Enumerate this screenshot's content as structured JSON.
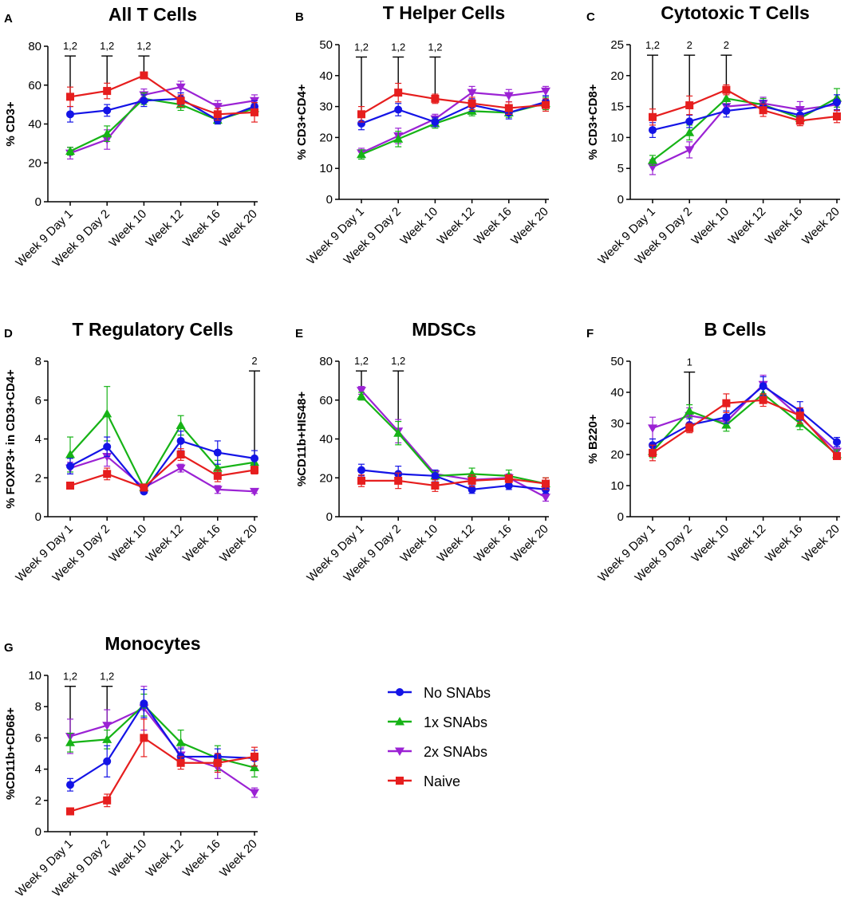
{
  "legend": [
    {
      "name": "No SNAbs",
      "color": "#1414e6",
      "marker": "circle"
    },
    {
      "name": "1x SNAbs",
      "color": "#16b316",
      "marker": "triangle-up"
    },
    {
      "name": "2x SNAbs",
      "color": "#9b22d4",
      "marker": "triangle-down"
    },
    {
      "name": "Naive",
      "color": "#e61e1e",
      "marker": "square"
    }
  ],
  "chart_data": [
    {
      "type": "line",
      "panel": "A",
      "title": "All T Cells",
      "ylabel": "% CD3+",
      "categories": [
        "Week 9 Day 1",
        "Week 9 Day 2",
        "Week 10",
        "Week 12",
        "Week 16",
        "Week 20"
      ],
      "ylim": [
        0,
        80
      ],
      "yticks": [
        0,
        20,
        40,
        60,
        80
      ],
      "series": [
        {
          "name": "No SNAbs",
          "values": [
            45,
            47,
            52,
            53,
            42,
            49
          ],
          "errors": [
            4,
            3,
            3,
            3,
            2,
            3
          ]
        },
        {
          "name": "1x SNAbs",
          "values": [
            26,
            35,
            53,
            50,
            42,
            48
          ],
          "errors": [
            2,
            4,
            3,
            3,
            2,
            3
          ]
        },
        {
          "name": "2x SNAbs",
          "values": [
            25,
            32,
            55,
            59,
            49,
            52
          ],
          "errors": [
            3,
            5,
            3,
            3,
            3,
            3
          ]
        },
        {
          "name": "Naive",
          "values": [
            54,
            57,
            65,
            52,
            45,
            46
          ],
          "errors": [
            5,
            4,
            1,
            3,
            3,
            5
          ]
        }
      ],
      "annotations": [
        {
          "label": "1,2",
          "category": "Week 9 Day 1",
          "from": 54,
          "to": 75
        },
        {
          "label": "1,2",
          "category": "Week 9 Day 2",
          "from": 57,
          "to": 75
        },
        {
          "label": "1,2",
          "category": "Week 10",
          "from": 65,
          "to": 75
        }
      ]
    },
    {
      "type": "line",
      "panel": "B",
      "title": "T Helper Cells",
      "ylabel": "% CD3+CD4+",
      "categories": [
        "Week 9 Day 1",
        "Week 9 Day 2",
        "Week 10",
        "Week 12",
        "Week 16",
        "Week 20"
      ],
      "ylim": [
        0,
        50
      ],
      "yticks": [
        0,
        10,
        20,
        30,
        40,
        50
      ],
      "series": [
        {
          "name": "No SNAbs",
          "values": [
            24.5,
            29,
            25,
            30.5,
            28,
            31.5
          ],
          "errors": [
            2,
            2,
            1.5,
            2,
            2,
            2
          ]
        },
        {
          "name": "1x SNAbs",
          "values": [
            14.5,
            19.5,
            24.5,
            28.5,
            28,
            31
          ],
          "errors": [
            1.5,
            2.5,
            1.5,
            1.5,
            1.5,
            2
          ]
        },
        {
          "name": "2x SNAbs",
          "values": [
            15,
            20.5,
            26,
            34.5,
            33.5,
            35
          ],
          "errors": [
            1.5,
            2.5,
            1.5,
            2,
            2,
            1.5
          ]
        },
        {
          "name": "Naive",
          "values": [
            27.5,
            34.5,
            32.5,
            31,
            29.5,
            30.5
          ],
          "errors": [
            2.5,
            3,
            1.5,
            2,
            2,
            2
          ]
        }
      ],
      "annotations": [
        {
          "label": "1,2",
          "category": "Week 9 Day 1",
          "from": 28,
          "to": 46
        },
        {
          "label": "1,2",
          "category": "Week 9 Day 2",
          "from": 35,
          "to": 46
        },
        {
          "label": "1,2",
          "category": "Week 10",
          "from": 33,
          "to": 46
        }
      ]
    },
    {
      "type": "line",
      "panel": "C",
      "title": "Cytotoxic T Cells",
      "ylabel": "% CD3+CD8+",
      "categories": [
        "Week 9 Day 1",
        "Week 9 Day 2",
        "Week 10",
        "Week 12",
        "Week 16",
        "Week 20"
      ],
      "ylim": [
        0,
        25
      ],
      "yticks": [
        0,
        5,
        10,
        15,
        20,
        25
      ],
      "series": [
        {
          "name": "No SNAbs",
          "values": [
            11.2,
            12.6,
            14.3,
            15,
            13.6,
            15.7
          ],
          "errors": [
            1.2,
            1,
            1,
            1,
            0.8,
            1.2
          ]
        },
        {
          "name": "1x SNAbs",
          "values": [
            6.3,
            10.8,
            16.3,
            15.3,
            13.1,
            16.4
          ],
          "errors": [
            0.8,
            1.2,
            1,
            1,
            0.8,
            1.5
          ]
        },
        {
          "name": "2x SNAbs",
          "values": [
            5.2,
            8,
            15,
            15.5,
            14.5,
            15.3
          ],
          "errors": [
            1.2,
            1.3,
            1,
            1,
            1.3,
            1
          ]
        },
        {
          "name": "Naive",
          "values": [
            13.3,
            15.2,
            17.7,
            14.4,
            12.7,
            13.4
          ],
          "errors": [
            1.3,
            1.5,
            0.8,
            1,
            0.8,
            1
          ]
        }
      ],
      "annotations": [
        {
          "label": "1,2",
          "category": "Week 9 Day 1",
          "from": 13.5,
          "to": 23.3
        },
        {
          "label": "2",
          "category": "Week 9 Day 2",
          "from": 15.5,
          "to": 23.3
        },
        {
          "label": "2",
          "category": "Week 10",
          "from": 18,
          "to": 23.3
        }
      ]
    },
    {
      "type": "line",
      "panel": "D",
      "title": "T Regulatory Cells",
      "ylabel": "% FOXP3+ in CD3+CD4+",
      "categories": [
        "Week 9 Day 1",
        "Week 9 Day 2",
        "Week 10",
        "Week 12",
        "Week 16",
        "Week 20"
      ],
      "ylim": [
        0,
        8
      ],
      "yticks": [
        0,
        2,
        4,
        6,
        8
      ],
      "series": [
        {
          "name": "No SNAbs",
          "values": [
            2.6,
            3.6,
            1.3,
            3.9,
            3.3,
            3
          ],
          "errors": [
            0.4,
            0.5,
            0.1,
            0.5,
            0.6,
            0.4
          ]
        },
        {
          "name": "1x SNAbs",
          "values": [
            3.2,
            5.3,
            1.5,
            4.7,
            2.5,
            2.8
          ],
          "errors": [
            0.9,
            1.4,
            0.1,
            0.5,
            0.4,
            0.3
          ]
        },
        {
          "name": "2x SNAbs",
          "values": [
            2.5,
            3.1,
            1.5,
            2.5,
            1.4,
            1.3
          ],
          "errors": [
            0.3,
            0.5,
            0.1,
            0.2,
            0.2,
            0.1
          ]
        },
        {
          "name": "Naive",
          "values": [
            1.6,
            2.2,
            1.5,
            3.2,
            2.1,
            2.4
          ],
          "errors": [
            0.1,
            0.3,
            0.1,
            0.3,
            0.3,
            0.2
          ]
        }
      ],
      "annotations": [
        {
          "label": "2",
          "category": "Week 20",
          "from": 2.4,
          "to": 7.5
        }
      ]
    },
    {
      "type": "line",
      "panel": "E",
      "title": "MDSCs",
      "ylabel": "%CD11b+HIS48+",
      "categories": [
        "Week 9 Day 1",
        "Week 9 Day 2",
        "Week 10",
        "Week 12",
        "Week 16",
        "Week 20"
      ],
      "ylim": [
        0,
        80
      ],
      "yticks": [
        0,
        20,
        40,
        60,
        80
      ],
      "series": [
        {
          "name": "No SNAbs",
          "values": [
            24,
            22,
            21,
            14,
            16,
            14
          ],
          "errors": [
            3,
            4,
            3,
            2,
            2,
            2
          ]
        },
        {
          "name": "1x SNAbs",
          "values": [
            62,
            43,
            21,
            22,
            21,
            17
          ],
          "errors": [
            2,
            6,
            2,
            3,
            3,
            3
          ]
        },
        {
          "name": "2x SNAbs",
          "values": [
            65,
            44,
            22,
            19,
            20,
            10
          ],
          "errors": [
            2,
            6,
            2,
            2,
            2,
            2
          ]
        },
        {
          "name": "Naive",
          "values": [
            18.5,
            18.5,
            16,
            18.5,
            19.5,
            17
          ],
          "errors": [
            3,
            4,
            3,
            3,
            2,
            3
          ]
        }
      ],
      "annotations": [
        {
          "label": "1,2",
          "category": "Week 9 Day 1",
          "from": 66,
          "to": 75
        },
        {
          "label": "1,2",
          "category": "Week 9 Day 2",
          "from": 45,
          "to": 75
        }
      ]
    },
    {
      "type": "line",
      "panel": "F",
      "title": "B Cells",
      "ylabel": "% B220+",
      "categories": [
        "Week 9 Day 1",
        "Week 9 Day 2",
        "Week 10",
        "Week 12",
        "Week 16",
        "Week 20"
      ],
      "ylim": [
        0,
        50
      ],
      "yticks": [
        0,
        10,
        20,
        30,
        40,
        50
      ],
      "series": [
        {
          "name": "No SNAbs",
          "values": [
            23,
            29.5,
            32,
            42,
            34,
            24
          ],
          "errors": [
            2,
            2,
            2,
            3,
            3,
            1.5
          ]
        },
        {
          "name": "1x SNAbs",
          "values": [
            21,
            34,
            29.5,
            39.5,
            30,
            20
          ],
          "errors": [
            2,
            2,
            2,
            2,
            2,
            1.5
          ]
        },
        {
          "name": "2x SNAbs",
          "values": [
            28.5,
            32.5,
            30.5,
            42.5,
            32,
            21
          ],
          "errors": [
            3.5,
            2.5,
            2,
            3,
            3,
            1.5
          ]
        },
        {
          "name": "Naive",
          "values": [
            20.5,
            28.5,
            36.5,
            37.5,
            32.5,
            19.5
          ],
          "errors": [
            2.5,
            1.5,
            3,
            2,
            2.5,
            1
          ]
        }
      ],
      "annotations": [
        {
          "label": "1",
          "category": "Week 9 Day 2",
          "from": 35,
          "to": 46.5
        }
      ]
    },
    {
      "type": "line",
      "panel": "G",
      "title": "Monocytes",
      "ylabel": "%CD11b+CD68+",
      "categories": [
        "Week 9 Day 1",
        "Week 9 Day 2",
        "Week 10",
        "Week 12",
        "Week 16",
        "Week 20"
      ],
      "ylim": [
        0,
        10
      ],
      "yticks": [
        0,
        2,
        4,
        6,
        8,
        10
      ],
      "series": [
        {
          "name": "No SNAbs",
          "values": [
            3,
            4.5,
            8.2,
            4.8,
            4.8,
            4.7
          ],
          "errors": [
            0.4,
            1,
            0.9,
            0.5,
            0.5,
            0.5
          ]
        },
        {
          "name": "1x SNAbs",
          "values": [
            5.7,
            5.9,
            8.1,
            5.7,
            4.7,
            4.1
          ],
          "errors": [
            0.6,
            0.6,
            0.7,
            0.8,
            0.8,
            0.6
          ]
        },
        {
          "name": "2x SNAbs",
          "values": [
            6.1,
            6.8,
            7.9,
            4.9,
            4.1,
            2.5
          ],
          "errors": [
            1.1,
            1,
            1.4,
            0.5,
            0.7,
            0.3
          ]
        },
        {
          "name": "Naive",
          "values": [
            1.3,
            2,
            6,
            4.4,
            4.4,
            4.8
          ],
          "errors": [
            0.2,
            0.4,
            1.2,
            0.4,
            0.6,
            0.6
          ]
        }
      ],
      "annotations": [
        {
          "label": "1,2",
          "category": "Week 9 Day 1",
          "from": 6.2,
          "to": 9.3
        },
        {
          "label": "1,2",
          "category": "Week 9 Day 2",
          "from": 7,
          "to": 9.3
        }
      ]
    }
  ]
}
